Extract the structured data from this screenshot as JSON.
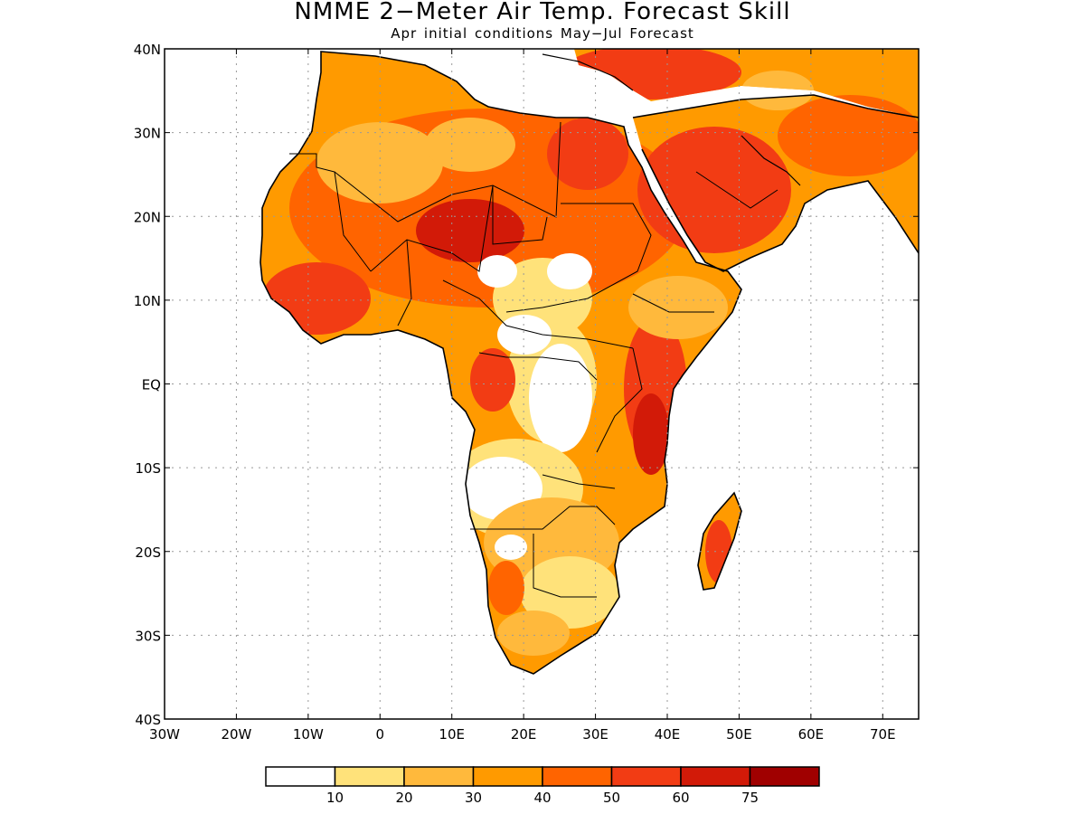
{
  "title": "NMME 2−Meter Air Temp. Forecast Skill",
  "subtitle": "Apr initial conditions  May−Jul Forecast",
  "map": {
    "lon_range": [
      -30,
      75
    ],
    "lat_range": [
      -40,
      40
    ],
    "lon_ticks": [
      {
        "value": -30,
        "label": "30W"
      },
      {
        "value": -20,
        "label": "20W"
      },
      {
        "value": -10,
        "label": "10W"
      },
      {
        "value": 0,
        "label": "0"
      },
      {
        "value": 10,
        "label": "10E"
      },
      {
        "value": 20,
        "label": "20E"
      },
      {
        "value": 30,
        "label": "30E"
      },
      {
        "value": 40,
        "label": "40E"
      },
      {
        "value": 50,
        "label": "50E"
      },
      {
        "value": 60,
        "label": "60E"
      },
      {
        "value": 70,
        "label": "70E"
      }
    ],
    "lat_ticks": [
      {
        "value": 40,
        "label": "40N"
      },
      {
        "value": 30,
        "label": "30N"
      },
      {
        "value": 20,
        "label": "20N"
      },
      {
        "value": 10,
        "label": "10N"
      },
      {
        "value": 0,
        "label": "EQ"
      },
      {
        "value": -10,
        "label": "10S"
      },
      {
        "value": -20,
        "label": "20S"
      },
      {
        "value": -30,
        "label": "30S"
      },
      {
        "value": -40,
        "label": "40S"
      }
    ],
    "grid": true
  },
  "colorbar": {
    "colors": [
      "#ffffff",
      "#ffe27a",
      "#ffb93c",
      "#ff9a00",
      "#ff6400",
      "#f23c14",
      "#d21a08",
      "#a00000"
    ],
    "labels": [
      "10",
      "20",
      "30",
      "40",
      "50",
      "60",
      "75"
    ]
  }
}
